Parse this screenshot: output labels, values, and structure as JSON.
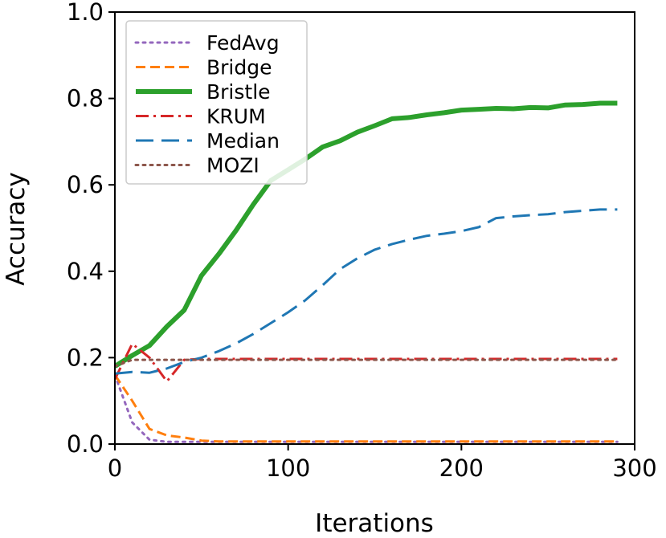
{
  "chart_data": {
    "type": "line",
    "title": "",
    "xlabel": "Iterations",
    "ylabel": "Accuracy",
    "xlim": [
      0,
      300
    ],
    "ylim": [
      0.0,
      1.0
    ],
    "xticks": [
      0,
      100,
      200,
      300
    ],
    "yticks": [
      0.0,
      0.2,
      0.4,
      0.6,
      0.8,
      1.0
    ],
    "xtick_labels": [
      "0",
      "100",
      "200",
      "300"
    ],
    "ytick_labels": [
      "0.0",
      "0.2",
      "0.4",
      "0.6",
      "0.8",
      "1.0"
    ],
    "grid": false,
    "legend_position": "top-left",
    "x": [
      0,
      10,
      20,
      30,
      40,
      50,
      60,
      70,
      80,
      90,
      100,
      110,
      120,
      130,
      140,
      150,
      160,
      170,
      180,
      190,
      200,
      210,
      220,
      230,
      240,
      250,
      260,
      270,
      280,
      290
    ],
    "series": [
      {
        "name": "FedAvg",
        "color": "#9467bd",
        "dash": "dotted",
        "width": 3,
        "values": [
          0.16,
          0.05,
          0.01,
          0.005,
          0.005,
          0.005,
          0.005,
          0.005,
          0.005,
          0.005,
          0.005,
          0.005,
          0.005,
          0.005,
          0.005,
          0.005,
          0.005,
          0.005,
          0.005,
          0.005,
          0.005,
          0.005,
          0.005,
          0.005,
          0.005,
          0.005,
          0.005,
          0.005,
          0.005,
          0.005
        ]
      },
      {
        "name": "Bridge",
        "color": "#ff7f0e",
        "dash": "dashed",
        "width": 3,
        "values": [
          0.16,
          0.1,
          0.035,
          0.02,
          0.015,
          0.008,
          0.006,
          0.006,
          0.006,
          0.006,
          0.006,
          0.006,
          0.006,
          0.006,
          0.006,
          0.006,
          0.006,
          0.006,
          0.006,
          0.006,
          0.006,
          0.006,
          0.006,
          0.006,
          0.006,
          0.006,
          0.006,
          0.006,
          0.006,
          0.006
        ]
      },
      {
        "name": "Bristle",
        "color": "#2ca02c",
        "dash": "solid",
        "width": 6,
        "values": [
          0.18,
          0.205,
          0.228,
          0.272,
          0.31,
          0.39,
          0.44,
          0.495,
          0.555,
          0.61,
          0.635,
          0.66,
          0.688,
          0.702,
          0.722,
          0.737,
          0.753,
          0.756,
          0.762,
          0.767,
          0.773,
          0.775,
          0.777,
          0.776,
          0.779,
          0.778,
          0.785,
          0.786,
          0.789,
          0.789
        ]
      },
      {
        "name": "KRUM",
        "color": "#d62728",
        "dash": "dashdot",
        "width": 3,
        "values": [
          0.15,
          0.232,
          0.2,
          0.145,
          0.195,
          0.197,
          0.197,
          0.197,
          0.197,
          0.197,
          0.197,
          0.197,
          0.197,
          0.197,
          0.197,
          0.197,
          0.197,
          0.197,
          0.197,
          0.197,
          0.197,
          0.197,
          0.197,
          0.197,
          0.197,
          0.197,
          0.197,
          0.197,
          0.197,
          0.197
        ]
      },
      {
        "name": "Median",
        "color": "#1f77b4",
        "dash": "longdash",
        "width": 3,
        "values": [
          0.163,
          0.167,
          0.165,
          0.175,
          0.19,
          0.2,
          0.215,
          0.233,
          0.255,
          0.28,
          0.305,
          0.333,
          0.368,
          0.405,
          0.43,
          0.45,
          0.463,
          0.473,
          0.482,
          0.487,
          0.493,
          0.502,
          0.523,
          0.527,
          0.53,
          0.532,
          0.537,
          0.54,
          0.543,
          0.543
        ]
      },
      {
        "name": "MOZI",
        "color": "#8c564b",
        "dash": "dotted",
        "width": 3,
        "values": [
          0.18,
          0.195,
          0.195,
          0.195,
          0.195,
          0.195,
          0.195,
          0.195,
          0.195,
          0.195,
          0.195,
          0.195,
          0.195,
          0.195,
          0.195,
          0.195,
          0.195,
          0.195,
          0.195,
          0.195,
          0.195,
          0.195,
          0.195,
          0.195,
          0.195,
          0.195,
          0.195,
          0.195,
          0.195,
          0.195
        ]
      }
    ]
  }
}
